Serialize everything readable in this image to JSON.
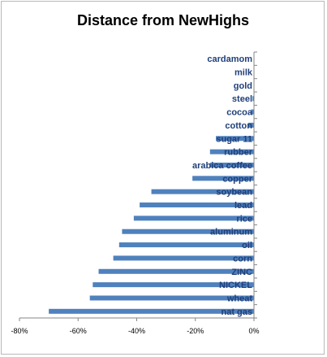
{
  "chart_data": {
    "type": "bar",
    "orientation": "horizontal",
    "title": "Distance from NewHighs",
    "xlabel": "",
    "ylabel": "",
    "categories": [
      "nat gas",
      "wheat",
      "NICKEL",
      "ZINC",
      "corn",
      "oil",
      "aluminum",
      "rice",
      "lead",
      "soybean",
      "copper",
      "arabica coffee",
      "rubber",
      "sugar 11",
      "cotton",
      "cocoa",
      "steel",
      "gold",
      "milk",
      "cardamom"
    ],
    "values": [
      -0.7,
      -0.56,
      -0.55,
      -0.53,
      -0.48,
      -0.46,
      -0.45,
      -0.41,
      -0.39,
      -0.35,
      -0.21,
      -0.15,
      -0.15,
      -0.13,
      -0.02,
      -0.01,
      -0.005,
      0,
      0,
      0
    ],
    "xlim": [
      -0.8,
      0
    ],
    "xticks": [
      -0.8,
      -0.6,
      -0.4,
      -0.2,
      0
    ],
    "xtick_labels": [
      "-80%",
      "-60%",
      "-40%",
      "-20%",
      "0%"
    ],
    "bar_color": "#4f81bd",
    "label_color": "#1f3f7a",
    "grid": false,
    "legend": "none"
  }
}
